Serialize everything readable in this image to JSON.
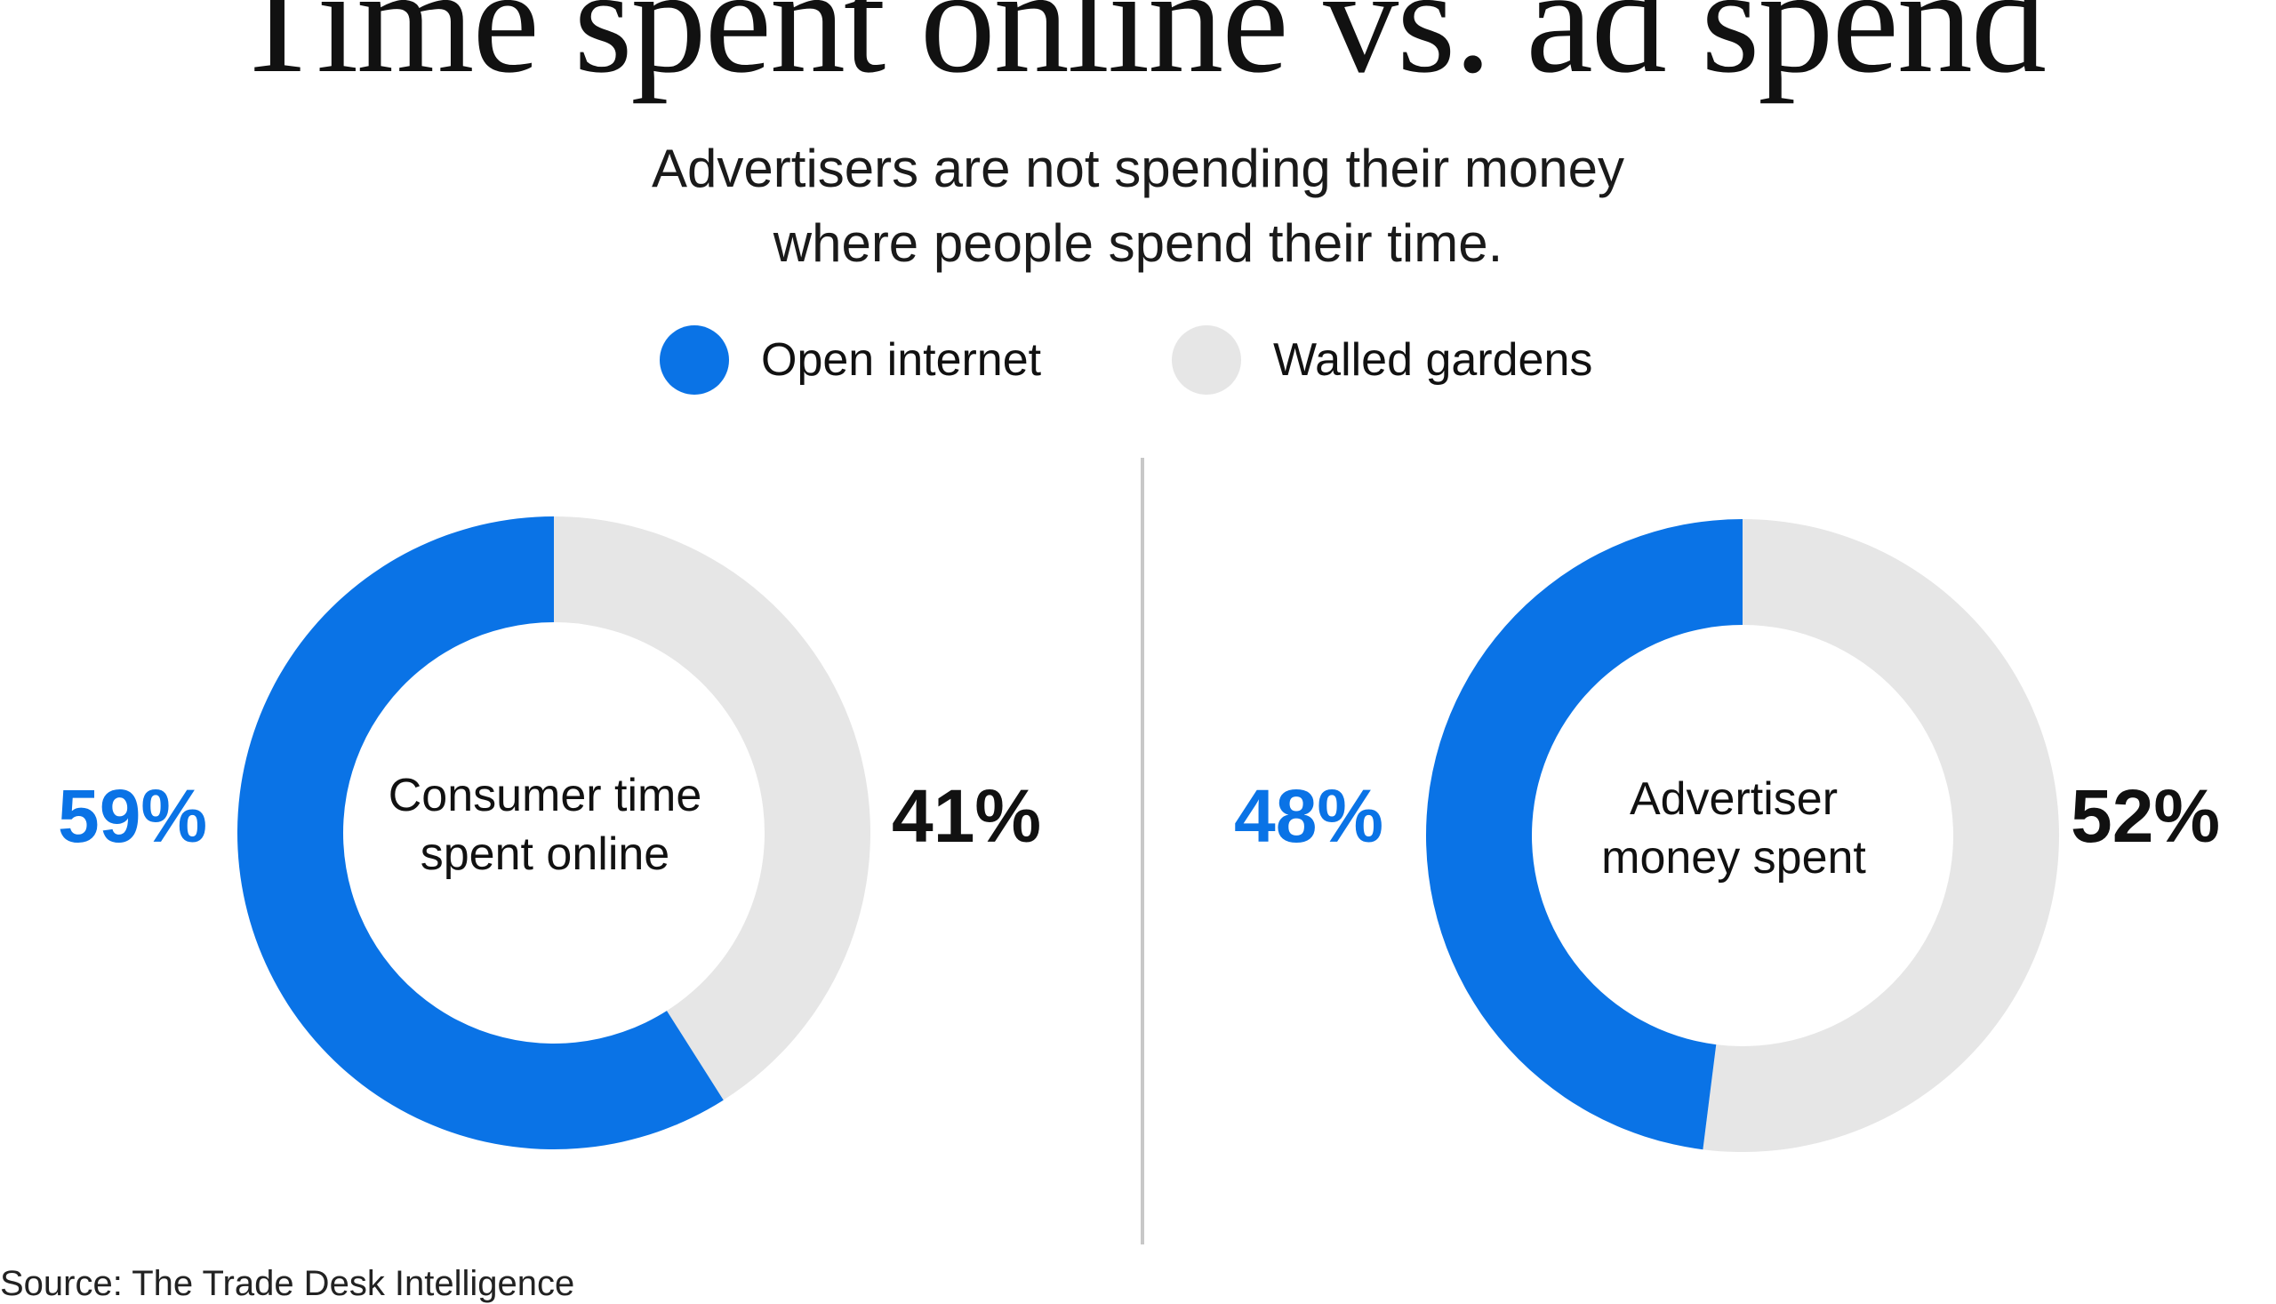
{
  "title": "Time spent online vs. ad spend",
  "subtitle_lines": [
    "Advertisers are not spending their money",
    "where people spend their time."
  ],
  "legend": {
    "items": [
      {
        "label": "Open internet",
        "color": "#0a73e6"
      },
      {
        "label": "Walled gardens",
        "color": "#e6e6e6"
      }
    ]
  },
  "source": "Source: The Trade Desk Intelligence",
  "chart_data": [
    {
      "type": "pie",
      "center_label_lines": [
        "Consumer time",
        "spent online"
      ],
      "series": [
        {
          "name": "Open internet",
          "value": 59,
          "label": "59%",
          "color": "#0a73e6"
        },
        {
          "name": "Walled gardens",
          "value": 41,
          "label": "41%",
          "color": "#e6e6e6"
        }
      ]
    },
    {
      "type": "pie",
      "center_label_lines": [
        "Advertiser",
        "money spent"
      ],
      "series": [
        {
          "name": "Open internet",
          "value": 48,
          "label": "48%",
          "color": "#0a73e6"
        },
        {
          "name": "Walled gardens",
          "value": 52,
          "label": "52%",
          "color": "#e6e6e6"
        }
      ]
    }
  ]
}
